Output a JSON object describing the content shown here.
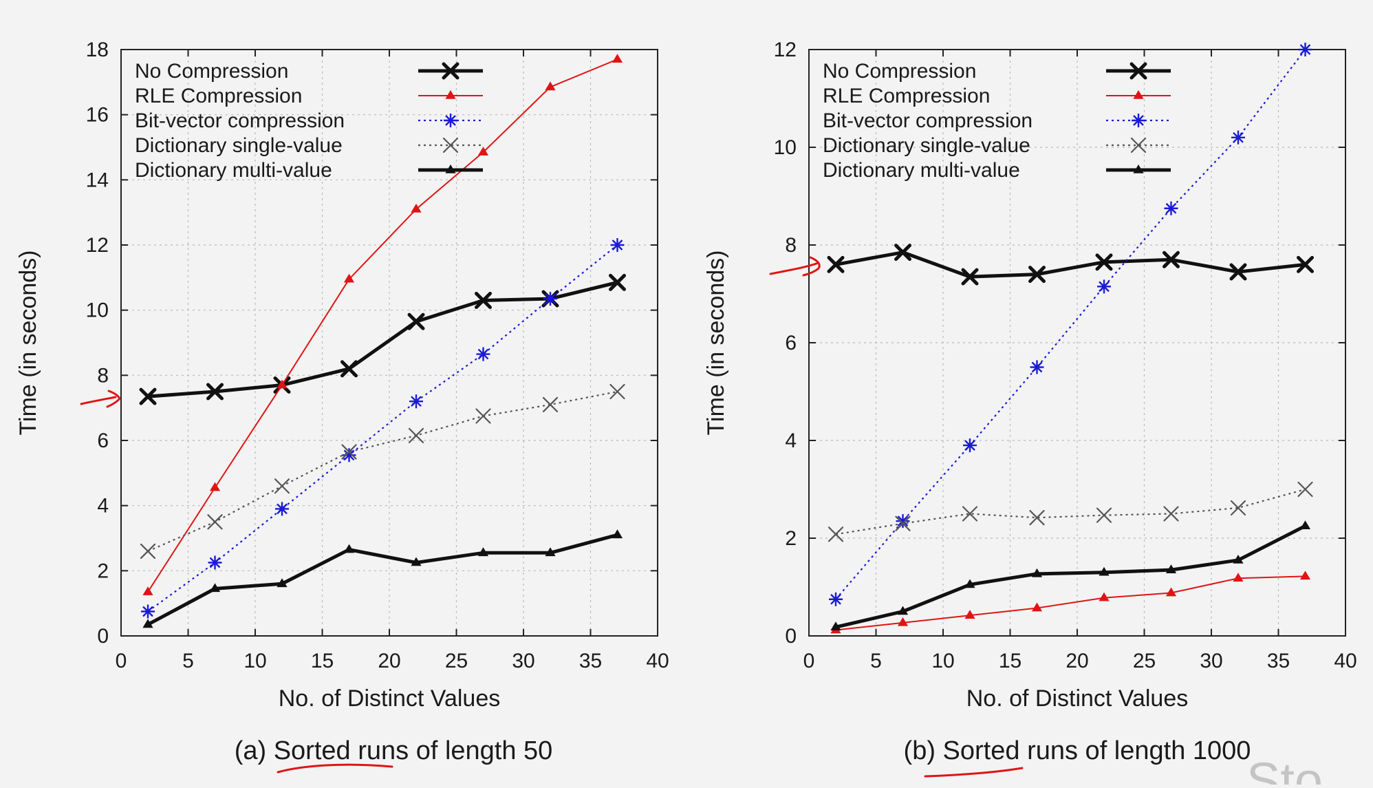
{
  "colors": {
    "no_compression": "#111111",
    "rle_compression": "#e01414",
    "bit_vector": "#1a1ad6",
    "dict_single": "#555555",
    "dict_multi": "#111111",
    "annotation": "#e01414"
  },
  "legend_labels": [
    "No Compression",
    "RLE Compression",
    "Bit-vector compression",
    "Dictionary single-value",
    "Dictionary multi-value"
  ],
  "panels": [
    {
      "caption_prefix": "(a) ",
      "caption_underlined": "Sorted runs",
      "caption_suffix": " of length 50"
    },
    {
      "caption_prefix": "(b) ",
      "caption_underlined": "Sorted runs",
      "caption_suffix": " of length 1000"
    }
  ],
  "corner_text": "Sto",
  "chart_data": [
    {
      "type": "line",
      "title": "(a) Sorted runs of length 50",
      "xlabel": "No. of Distinct Values",
      "ylabel": "Time (in seconds)",
      "xlim": [
        0,
        40
      ],
      "ylim": [
        0,
        18
      ],
      "xticks": [
        0,
        5,
        10,
        15,
        20,
        25,
        30,
        35,
        40
      ],
      "yticks": [
        0,
        2,
        4,
        6,
        8,
        10,
        12,
        14,
        16,
        18
      ],
      "grid": true,
      "legend_position": "top-left",
      "x": [
        2,
        7,
        12,
        17,
        22,
        27,
        32,
        37
      ],
      "series": [
        {
          "name": "No Compression",
          "marker": "x-bold",
          "style": "solid-thick",
          "color": "#111111",
          "values": [
            7.35,
            7.5,
            7.7,
            8.2,
            9.65,
            10.3,
            10.35,
            10.85
          ]
        },
        {
          "name": "RLE Compression",
          "marker": "triangle",
          "style": "solid-thin",
          "color": "#e01414",
          "values": [
            1.35,
            4.55,
            7.7,
            10.95,
            13.1,
            14.85,
            16.85,
            17.7
          ]
        },
        {
          "name": "Bit-vector compression",
          "marker": "asterisk",
          "style": "dotted",
          "color": "#1a1ad6",
          "values": [
            0.75,
            2.25,
            3.9,
            5.55,
            7.2,
            8.65,
            10.35,
            12.0
          ]
        },
        {
          "name": "Dictionary single-value",
          "marker": "x",
          "style": "dotted",
          "color": "#555555",
          "values": [
            2.6,
            3.5,
            4.6,
            5.65,
            6.15,
            6.75,
            7.1,
            7.5
          ]
        },
        {
          "name": "Dictionary multi-value",
          "marker": "triangle",
          "style": "solid-thick",
          "color": "#111111",
          "values": [
            0.35,
            1.45,
            1.6,
            2.65,
            2.25,
            2.55,
            2.55,
            3.1
          ]
        }
      ]
    },
    {
      "type": "line",
      "title": "(b) Sorted runs of length 1000",
      "xlabel": "No. of Distinct Values",
      "ylabel": "Time (in seconds)",
      "xlim": [
        0,
        40
      ],
      "ylim": [
        0,
        12
      ],
      "xticks": [
        0,
        5,
        10,
        15,
        20,
        25,
        30,
        35,
        40
      ],
      "yticks": [
        0,
        2,
        4,
        6,
        8,
        10,
        12
      ],
      "grid": true,
      "legend_position": "top-left",
      "x": [
        2,
        7,
        12,
        17,
        22,
        27,
        32,
        37
      ],
      "series": [
        {
          "name": "No Compression",
          "marker": "x-bold",
          "style": "solid-thick",
          "color": "#111111",
          "values": [
            7.6,
            7.85,
            7.35,
            7.4,
            7.65,
            7.7,
            7.45,
            7.6
          ]
        },
        {
          "name": "RLE Compression",
          "marker": "triangle",
          "style": "solid-thin",
          "color": "#e01414",
          "values": [
            0.12,
            0.27,
            0.42,
            0.57,
            0.78,
            0.88,
            1.18,
            1.22
          ]
        },
        {
          "name": "Bit-vector compression",
          "marker": "asterisk",
          "style": "dotted",
          "color": "#1a1ad6",
          "values": [
            0.75,
            2.35,
            3.9,
            5.5,
            7.15,
            8.75,
            10.2,
            12.0
          ]
        },
        {
          "name": "Dictionary single-value",
          "marker": "x",
          "style": "dotted",
          "color": "#555555",
          "values": [
            2.08,
            2.3,
            2.5,
            2.42,
            2.47,
            2.5,
            2.62,
            3.0
          ]
        },
        {
          "name": "Dictionary multi-value",
          "marker": "triangle",
          "style": "solid-thick",
          "color": "#111111",
          "values": [
            0.18,
            0.5,
            1.05,
            1.27,
            1.3,
            1.35,
            1.55,
            2.25
          ]
        }
      ]
    }
  ]
}
